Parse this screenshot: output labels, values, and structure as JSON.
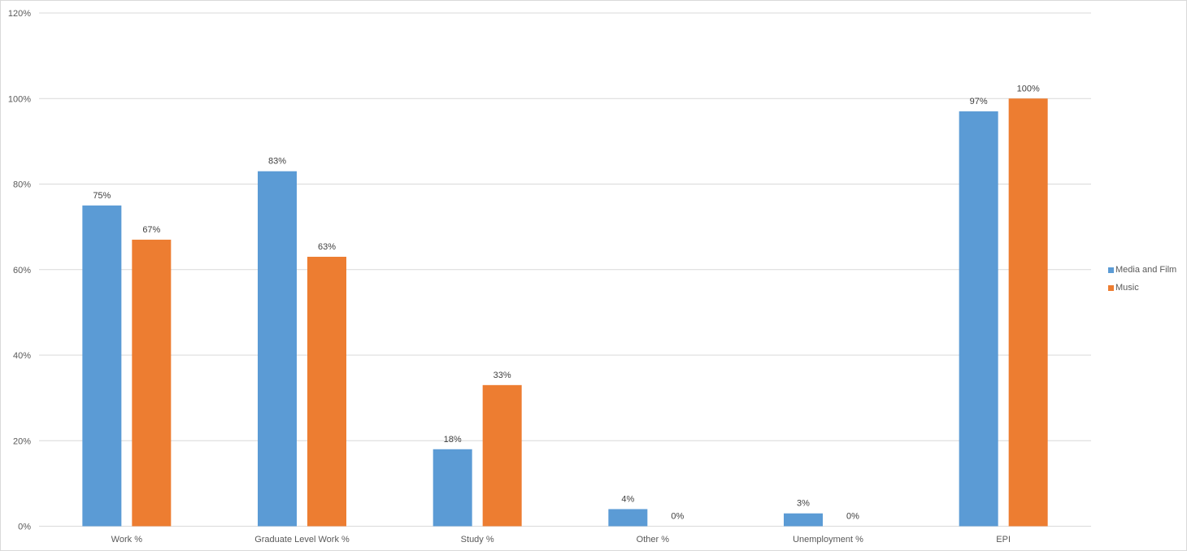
{
  "colors": {
    "series_1": "#5b9bd5",
    "series_2": "#ed7d31",
    "gridline": "#d9d9d9",
    "axis_text": "#595959",
    "label_text": "#404040"
  },
  "chart_data": {
    "type": "bar",
    "categories": [
      "Work %",
      "Graduate Level Work %",
      "Study %",
      "Other %",
      "Unemployment %",
      "EPI"
    ],
    "series": [
      {
        "name": "Media and Film",
        "values": [
          75,
          83,
          18,
          4,
          3,
          97
        ],
        "labels": [
          "75%",
          "83%",
          "18%",
          "4%",
          "3%",
          "97%"
        ]
      },
      {
        "name": "Music",
        "values": [
          67,
          63,
          33,
          0,
          0,
          100
        ],
        "labels": [
          "67%",
          "63%",
          "33%",
          "0%",
          "0%",
          "100%"
        ]
      }
    ],
    "ylim": [
      0,
      120
    ],
    "y_ticks": [
      {
        "value": 0,
        "label": "0%"
      },
      {
        "value": 20,
        "label": "20%"
      },
      {
        "value": 40,
        "label": "40%"
      },
      {
        "value": 60,
        "label": "60%"
      },
      {
        "value": 80,
        "label": "80%"
      },
      {
        "value": 100,
        "label": "100%"
      },
      {
        "value": 120,
        "label": "120%"
      }
    ],
    "title": "",
    "xlabel": "",
    "ylabel": "",
    "grid": true,
    "legend_position": "right"
  }
}
